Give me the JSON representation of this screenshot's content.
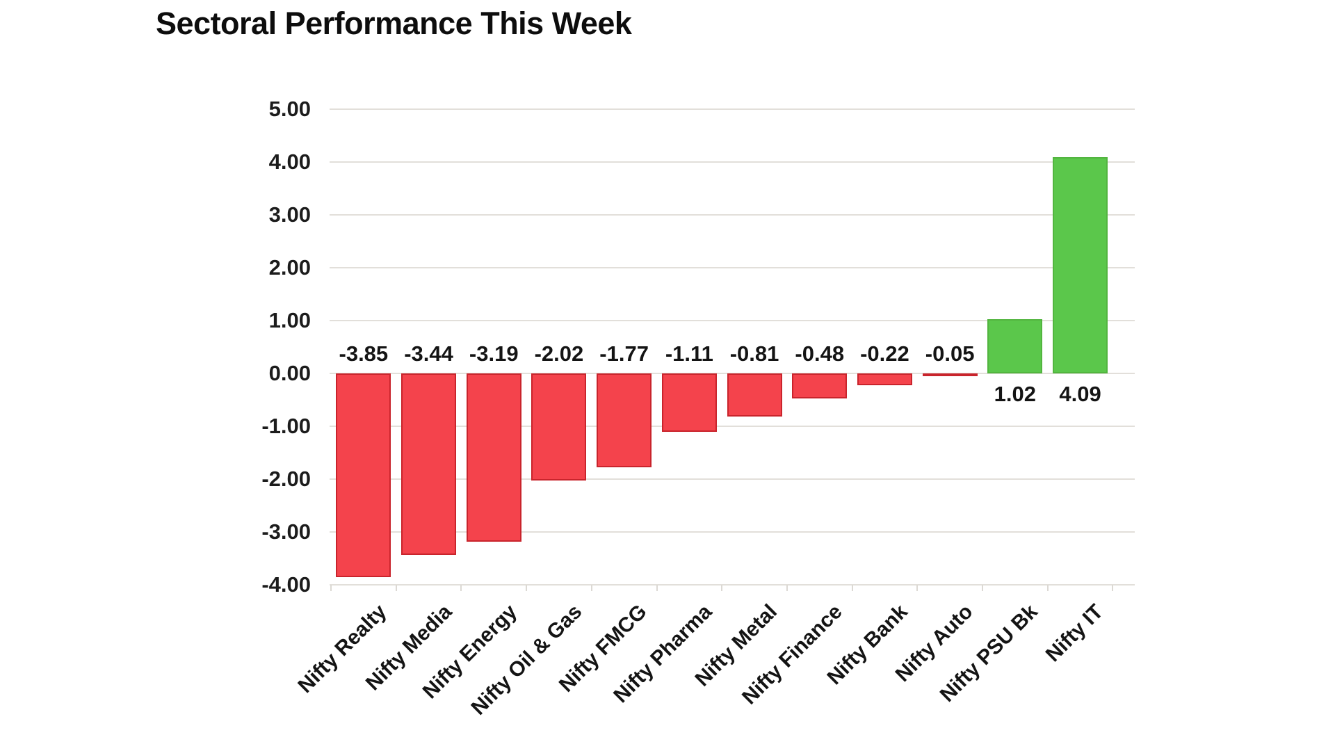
{
  "chart_data": {
    "type": "bar",
    "title": "Sectoral Performance This Week",
    "categories": [
      "Nifty Realty",
      "Nifty Media",
      "Nifty Energy",
      "Nifty Oil & Gas",
      "Nifty FMCG",
      "Nifty Pharma",
      "Nifty Metal",
      "Nifty Finance",
      "Nifty Bank",
      "Nifty Auto",
      "Nifty PSU Bk",
      "Nifty IT"
    ],
    "values": [
      -3.85,
      -3.44,
      -3.19,
      -2.02,
      -1.77,
      -1.11,
      -0.81,
      -0.48,
      -0.22,
      -0.05,
      1.02,
      4.09
    ],
    "value_labels": [
      "-3.85",
      "-3.44",
      "-3.19",
      "-2.02",
      "-1.77",
      "-1.11",
      "-0.81",
      "-0.48",
      "-0.22",
      "-0.05",
      "1.02",
      "4.09"
    ],
    "ytick_labels": [
      "5.00",
      "4.00",
      "3.00",
      "2.00",
      "1.00",
      "0.00",
      "-1.00",
      "-2.00",
      "-3.00",
      "-4.00"
    ],
    "ylim": [
      -4,
      5
    ],
    "ytick_step": 1,
    "xlabel": "",
    "ylabel": "",
    "grid": true,
    "legend_position": "none",
    "colors": {
      "negative_bar": "#f4434c",
      "negative_border": "#c9242c",
      "positive_bar": "#5bc74b",
      "positive_border": "#52b53f",
      "gridline": "#e2dfda",
      "text": "#141414",
      "background": "#ffffff"
    }
  }
}
